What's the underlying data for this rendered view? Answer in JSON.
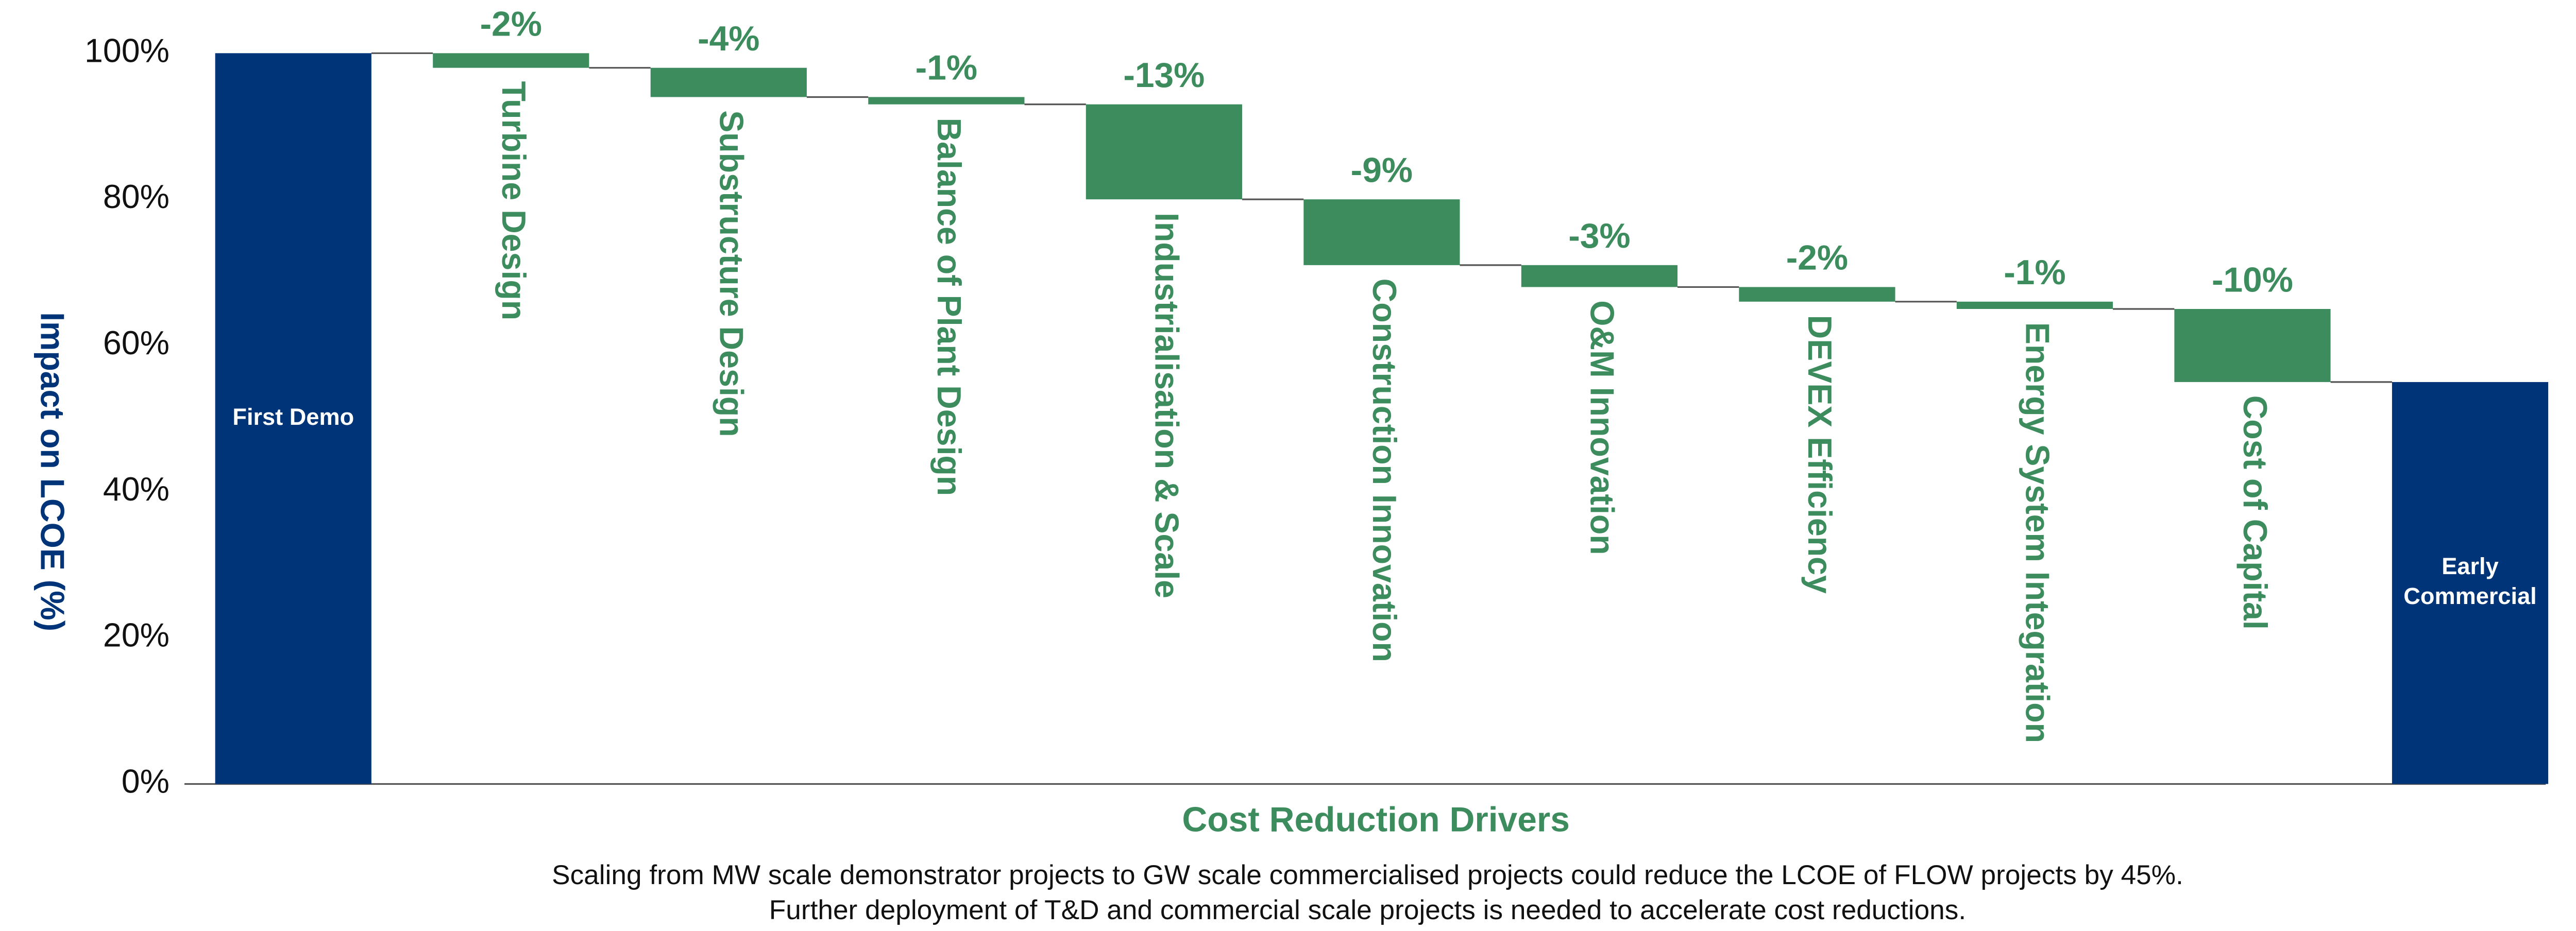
{
  "chart_data": {
    "type": "waterfall",
    "ylabel": "Impact on LCOE (%)",
    "xlabel": "Cost Reduction Drivers",
    "footnote": [
      "Scaling from MW scale demonstrator projects to GW scale commercialised projects could reduce the LCOE of FLOW projects by 45%.",
      "Further deployment of T&D and commercial scale projects is needed to accelerate cost reductions."
    ],
    "categories": [
      "First Demo",
      "Turbine Design",
      "Substructure Design",
      "Balance of Plant Design",
      "Industrialisation & Scale",
      "Construction Innovation",
      "O&M Innovation",
      "DEVEX Efficiency",
      "Energy System Integration",
      "Cost of Capital",
      "Early Commercial"
    ],
    "values": [
      100,
      -2,
      -4,
      -1,
      -13,
      -9,
      -3,
      -2,
      -1,
      -10,
      55
    ],
    "value_labels": [
      null,
      "-2%",
      "-4%",
      "-1%",
      "-13%",
      "-9%",
      "-3%",
      "-2%",
      "-1%",
      "-10%",
      null
    ],
    "total_color": "#003478",
    "change_color": "#3d8c5e",
    "ylim": [
      0,
      100
    ],
    "yticks": [
      {
        "value": 0,
        "label": "0%"
      },
      {
        "value": 20,
        "label": "20%"
      },
      {
        "value": 40,
        "label": "40%"
      },
      {
        "value": 60,
        "label": "60%"
      },
      {
        "value": 80,
        "label": "80%"
      },
      {
        "value": 100,
        "label": "100%"
      }
    ]
  }
}
